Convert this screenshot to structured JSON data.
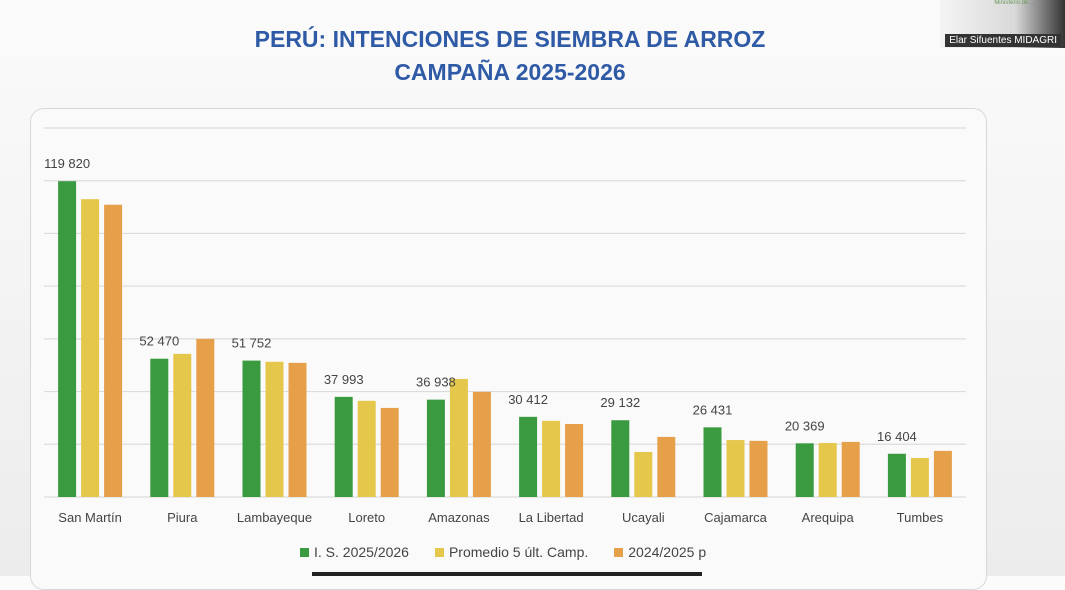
{
  "header": {
    "title_line1": "PERÚ: INTENCIONES DE SIEMBRA DE ARROZ",
    "title_line2": "CAMPAÑA 2025-2026"
  },
  "video": {
    "participant_name": "Elar Sifuentes MIDAGRI",
    "org_label": "Ministerio de ..."
  },
  "colors": {
    "s1": "#3a9a3f",
    "s2": "#e5c74c",
    "s3": "#e7a04a",
    "title": "#2f5aa6"
  },
  "chart_data": {
    "type": "bar",
    "title": "PERÚ: INTENCIONES DE SIEMBRA DE ARROZ CAMPAÑA 2025-2026",
    "categories": [
      "San Martín",
      "Piura",
      "Lambayeque",
      "Loreto",
      "Amazonas",
      "La Libertad",
      "Ucayali",
      "Cajamarca",
      "Arequipa",
      "Tumbes"
    ],
    "series": [
      {
        "name": "I. S. 2025/2026",
        "values": [
          119820,
          52470,
          51752,
          37993,
          36938,
          30412,
          29132,
          26431,
          20369,
          16404
        ]
      },
      {
        "name": "Promedio 5 últ. Camp.",
        "values": [
          113000,
          54300,
          51300,
          36500,
          44800,
          28900,
          17100,
          21600,
          20500,
          14800
        ]
      },
      {
        "name": "2024/2025 p",
        "values": [
          110900,
          60000,
          50900,
          33800,
          39900,
          27700,
          22800,
          21300,
          20900,
          17500
        ]
      }
    ],
    "data_labels": [
      "119 820",
      "52 470",
      "51 752",
      "37 993",
      "36 938",
      "30 412",
      "29 132",
      "26 431",
      "20 369",
      "16 404"
    ],
    "ylim": [
      0,
      140000
    ],
    "grid": true,
    "legend": "bottom"
  }
}
